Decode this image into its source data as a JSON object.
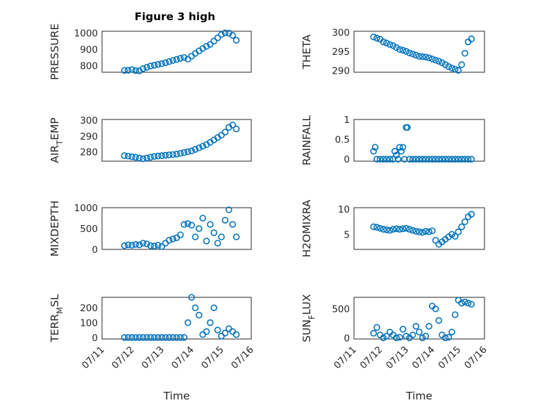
{
  "figure": {
    "title": "Figure 3 high",
    "marker_color": "#0072BD"
  },
  "chart_data": [
    {
      "type": "scatter",
      "title": "Figure 3 high",
      "ylabel": "PRESSURE",
      "xlabel": "",
      "xlim": [
        "07/11",
        "07/16"
      ],
      "ylim": [
        760,
        1010
      ],
      "yticks": [
        800,
        900,
        1000
      ],
      "xticks": [],
      "grid": true,
      "x": [
        "07/11 18:00",
        "07/11 21:00",
        "07/12 00:00",
        "07/12 03:00",
        "07/12 06:00",
        "07/12 09:00",
        "07/12 12:00",
        "07/12 15:00",
        "07/12 18:00",
        "07/12 21:00",
        "07/13 00:00",
        "07/13 03:00",
        "07/13 06:00",
        "07/13 09:00",
        "07/13 12:00",
        "07/13 15:00",
        "07/13 18:00",
        "07/13 21:00",
        "07/14 00:00",
        "07/14 03:00",
        "07/14 06:00",
        "07/14 09:00",
        "07/14 12:00",
        "07/14 15:00",
        "07/14 18:00",
        "07/14 21:00",
        "07/15 00:00",
        "07/15 03:00",
        "07/15 06:00",
        "07/15 09:00",
        "07/15 12:00"
      ],
      "y": [
        771,
        772,
        776,
        770,
        768,
        782,
        790,
        798,
        803,
        808,
        812,
        818,
        825,
        832,
        838,
        845,
        850,
        840,
        858,
        875,
        890,
        905,
        918,
        930,
        950,
        970,
        990,
        1000,
        998,
        985,
        955
      ]
    },
    {
      "type": "scatter",
      "ylabel": "THETA",
      "xlabel": "",
      "xlim": [
        "07/11",
        "07/16"
      ],
      "ylim": [
        289.5,
        300.3
      ],
      "yticks": [
        290,
        295,
        300
      ],
      "xticks": [],
      "grid": true,
      "x": [
        "07/11 18:00",
        "07/11 21:00",
        "07/12 00:00",
        "07/12 03:00",
        "07/12 06:00",
        "07/12 09:00",
        "07/12 12:00",
        "07/12 15:00",
        "07/12 18:00",
        "07/12 21:00",
        "07/13 00:00",
        "07/13 03:00",
        "07/13 06:00",
        "07/13 09:00",
        "07/13 12:00",
        "07/13 15:00",
        "07/13 18:00",
        "07/13 21:00",
        "07/14 00:00",
        "07/14 03:00",
        "07/14 06:00",
        "07/14 09:00",
        "07/14 12:00",
        "07/14 15:00",
        "07/14 18:00",
        "07/14 21:00",
        "07/15 00:00",
        "07/15 03:00",
        "07/15 06:00",
        "07/15 09:00",
        "07/15 12:00"
      ],
      "y": [
        298.8,
        298.5,
        298.2,
        297.5,
        297.2,
        296.8,
        296.5,
        296.0,
        295.5,
        295.3,
        295.0,
        294.6,
        294.3,
        294.0,
        293.7,
        293.6,
        293.5,
        293.3,
        293.0,
        292.7,
        292.4,
        292.0,
        291.5,
        291.0,
        290.6,
        290.3,
        290.0,
        291.5,
        294.5,
        297.5,
        298.3
      ]
    },
    {
      "type": "scatter",
      "ylabel": "AIR_TEMP",
      "ylabel_parts": [
        "AIR",
        "T",
        "EMP"
      ],
      "xlabel": "",
      "xlim": [
        "07/11",
        "07/16"
      ],
      "ylim": [
        274,
        300.5
      ],
      "yticks": [
        280,
        290,
        300
      ],
      "xticks": [],
      "grid": true,
      "x": [
        "07/11 18:00",
        "07/11 21:00",
        "07/12 00:00",
        "07/12 03:00",
        "07/12 06:00",
        "07/12 09:00",
        "07/12 12:00",
        "07/12 15:00",
        "07/12 18:00",
        "07/12 21:00",
        "07/13 00:00",
        "07/13 03:00",
        "07/13 06:00",
        "07/13 09:00",
        "07/13 12:00",
        "07/13 15:00",
        "07/13 18:00",
        "07/13 21:00",
        "07/14 00:00",
        "07/14 03:00",
        "07/14 06:00",
        "07/14 09:00",
        "07/14 12:00",
        "07/14 15:00",
        "07/14 18:00",
        "07/14 21:00",
        "07/15 00:00",
        "07/15 03:00",
        "07/15 06:00",
        "07/15 09:00",
        "07/15 12:00"
      ],
      "y": [
        277.5,
        277.2,
        276.8,
        276.5,
        276.0,
        275.5,
        276.0,
        276.5,
        277.0,
        277.3,
        277.5,
        277.8,
        278.0,
        278.2,
        278.5,
        279.0,
        279.5,
        280.0,
        280.5,
        281.5,
        282.5,
        283.5,
        284.5,
        286.0,
        287.5,
        289.0,
        290.5,
        292.5,
        295.5,
        297.0,
        294.5
      ]
    },
    {
      "type": "scatter",
      "ylabel": "RAINFALL",
      "xlabel": "",
      "xlim": [
        "07/11",
        "07/16"
      ],
      "ylim": [
        -0.05,
        1.0
      ],
      "yticks": [
        0,
        0.5,
        1
      ],
      "xticks": [],
      "grid": true,
      "x": [
        "07/11 18:00",
        "07/11 19:30",
        "07/11 21:00",
        "07/12 00:00",
        "07/12 03:00",
        "07/12 06:00",
        "07/12 09:00",
        "07/12 12:00",
        "07/12 13:30",
        "07/12 15:00",
        "07/12 16:30",
        "07/12 18:00",
        "07/12 19:30",
        "07/12 21:00",
        "07/12 22:30",
        "07/13 00:00",
        "07/13 01:00",
        "07/13 03:00",
        "07/13 06:00",
        "07/13 09:00",
        "07/13 12:00",
        "07/13 15:00",
        "07/13 18:00",
        "07/13 21:00",
        "07/14 00:00",
        "07/14 03:00",
        "07/14 06:00",
        "07/14 09:00",
        "07/14 12:00",
        "07/14 15:00",
        "07/14 18:00",
        "07/14 21:00",
        "07/15 00:00",
        "07/15 03:00",
        "07/15 06:00",
        "07/15 09:00",
        "07/15 12:00"
      ],
      "y": [
        0.2,
        0.3,
        0.0,
        0.0,
        0.0,
        0.0,
        0.0,
        0.0,
        0.2,
        0.1,
        0.0,
        0.3,
        0.2,
        0.3,
        0.0,
        0.8,
        0.8,
        0.0,
        0.0,
        0.0,
        0.0,
        0.0,
        0.0,
        0.0,
        0.0,
        0.0,
        0.0,
        0.0,
        0.0,
        0.0,
        0.0,
        0.0,
        0.0,
        0.0,
        0.0,
        0.0,
        0.0
      ]
    },
    {
      "type": "scatter",
      "ylabel": "MIXDEPTH",
      "xlabel": "",
      "xlim": [
        "07/11",
        "07/16"
      ],
      "ylim": [
        0,
        1000
      ],
      "yticks": [
        0,
        500,
        1000
      ],
      "xticks": [],
      "grid": true,
      "x": [
        "07/11 18:00",
        "07/11 21:00",
        "07/12 00:00",
        "07/12 03:00",
        "07/12 06:00",
        "07/12 09:00",
        "07/12 12:00",
        "07/12 15:00",
        "07/12 18:00",
        "07/12 21:00",
        "07/13 00:00",
        "07/13 03:00",
        "07/13 06:00",
        "07/13 09:00",
        "07/13 12:00",
        "07/13 15:00",
        "07/13 18:00",
        "07/13 21:00",
        "07/14 00:00",
        "07/14 03:00",
        "07/14 06:00",
        "07/14 09:00",
        "07/14 12:00",
        "07/14 15:00",
        "07/14 18:00",
        "07/14 21:00",
        "07/15 00:00",
        "07/15 03:00",
        "07/15 06:00",
        "07/15 09:00",
        "07/15 12:00"
      ],
      "y": [
        90,
        110,
        100,
        120,
        110,
        150,
        130,
        90,
        80,
        100,
        70,
        150,
        220,
        250,
        280,
        350,
        600,
        620,
        580,
        300,
        500,
        750,
        200,
        600,
        400,
        150,
        300,
        700,
        950,
        600,
        300
      ]
    },
    {
      "type": "scatter",
      "ylabel": "H2OMIXRA",
      "xlabel": "",
      "xlim": [
        "07/11",
        "07/16"
      ],
      "ylim": [
        2,
        10.3
      ],
      "yticks": [
        5,
        10
      ],
      "xticks": [],
      "grid": true,
      "x": [
        "07/11 18:00",
        "07/11 21:00",
        "07/12 00:00",
        "07/12 03:00",
        "07/12 06:00",
        "07/12 09:00",
        "07/12 12:00",
        "07/12 15:00",
        "07/12 18:00",
        "07/12 21:00",
        "07/13 00:00",
        "07/13 03:00",
        "07/13 06:00",
        "07/13 09:00",
        "07/13 12:00",
        "07/13 15:00",
        "07/13 18:00",
        "07/13 21:00",
        "07/14 00:00",
        "07/14 03:00",
        "07/14 06:00",
        "07/14 09:00",
        "07/14 12:00",
        "07/14 15:00",
        "07/14 18:00",
        "07/14 21:00",
        "07/15 00:00",
        "07/15 03:00",
        "07/15 06:00",
        "07/15 09:00",
        "07/15 12:00"
      ],
      "y": [
        6.5,
        6.4,
        6.2,
        6.0,
        5.9,
        5.8,
        6.0,
        6.1,
        6.0,
        6.1,
        6.2,
        6.0,
        5.8,
        5.6,
        5.5,
        5.4,
        5.6,
        5.5,
        5.7,
        3.8,
        3.0,
        3.5,
        4.0,
        4.5,
        5.0,
        4.6,
        5.5,
        6.5,
        7.5,
        8.5,
        9.0
      ]
    },
    {
      "type": "scatter",
      "ylabel": "TERR_MSL",
      "ylabel_parts": [
        "TERR",
        "M",
        "SL"
      ],
      "xlabel": "Time",
      "xlim": [
        "07/11",
        "07/16"
      ],
      "ylim": [
        -10,
        270
      ],
      "yticks": [
        0,
        100,
        200
      ],
      "xticks": [
        "07/11",
        "07/12",
        "07/13",
        "07/14",
        "07/15",
        "07/16"
      ],
      "grid": true,
      "x": [
        "07/11 18:00",
        "07/11 21:00",
        "07/12 00:00",
        "07/12 03:00",
        "07/12 06:00",
        "07/12 09:00",
        "07/12 12:00",
        "07/12 15:00",
        "07/12 18:00",
        "07/12 21:00",
        "07/13 00:00",
        "07/13 03:00",
        "07/13 06:00",
        "07/13 09:00",
        "07/13 12:00",
        "07/13 15:00",
        "07/13 18:00",
        "07/13 21:00",
        "07/14 00:00",
        "07/14 03:00",
        "07/14 06:00",
        "07/14 09:00",
        "07/14 12:00",
        "07/14 15:00",
        "07/14 18:00",
        "07/14 21:00",
        "07/15 00:00",
        "07/15 03:00",
        "07/15 06:00",
        "07/15 09:00",
        "07/15 12:00"
      ],
      "y": [
        0,
        0,
        0,
        0,
        0,
        0,
        0,
        0,
        0,
        0,
        0,
        0,
        0,
        0,
        0,
        0,
        0,
        100,
        270,
        200,
        150,
        20,
        40,
        100,
        200,
        50,
        10,
        30,
        60,
        40,
        20
      ]
    },
    {
      "type": "scatter",
      "ylabel": "SUN_FLUX",
      "ylabel_parts": [
        "SUN",
        "F",
        "LUX"
      ],
      "xlabel": "Time",
      "xlim": [
        "07/11",
        "07/16"
      ],
      "ylim": [
        -20,
        700
      ],
      "yticks": [
        0,
        500
      ],
      "xticks": [
        "07/11",
        "07/12",
        "07/13",
        "07/14",
        "07/15",
        "07/16"
      ],
      "grid": true,
      "x": [
        "07/11 18:00",
        "07/11 21:00",
        "07/12 00:00",
        "07/12 03:00",
        "07/12 06:00",
        "07/12 09:00",
        "07/12 12:00",
        "07/12 15:00",
        "07/12 18:00",
        "07/12 21:00",
        "07/13 00:00",
        "07/13 03:00",
        "07/13 06:00",
        "07/13 09:00",
        "07/13 12:00",
        "07/13 15:00",
        "07/13 18:00",
        "07/13 21:00",
        "07/14 00:00",
        "07/14 03:00",
        "07/14 06:00",
        "07/14 09:00",
        "07/14 12:00",
        "07/14 15:00",
        "07/14 18:00",
        "07/14 21:00",
        "07/15 00:00",
        "07/15 03:00",
        "07/15 06:00",
        "07/15 09:00",
        "07/15 12:00"
      ],
      "y": [
        80,
        180,
        50,
        0,
        30,
        100,
        50,
        0,
        10,
        150,
        30,
        0,
        50,
        200,
        100,
        0,
        30,
        200,
        550,
        500,
        300,
        50,
        0,
        10,
        100,
        400,
        650,
        600,
        620,
        600,
        580
      ]
    }
  ]
}
